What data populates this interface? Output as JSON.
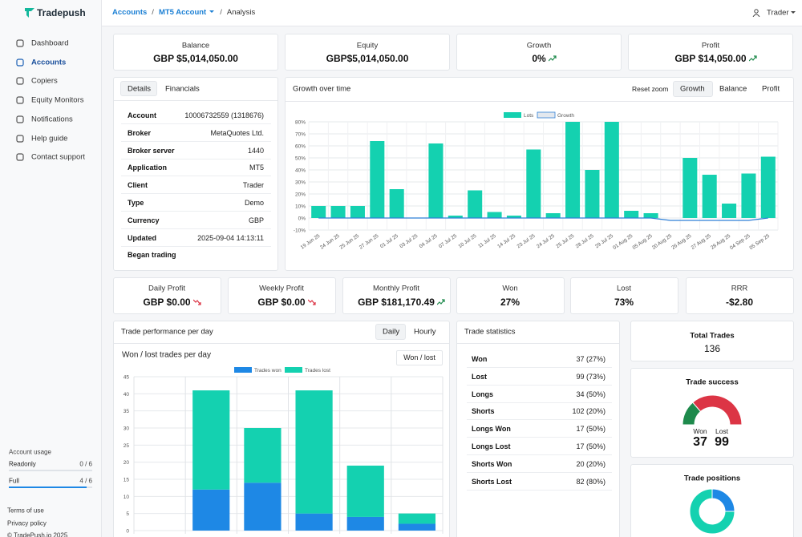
{
  "sidebar": {
    "brand": "Tradepush",
    "nav": [
      "Dashboard",
      "Accounts",
      "Copiers",
      "Equity Monitors",
      "Notifications",
      "Help guide",
      "Contact support"
    ],
    "usage_title": "Account usage",
    "usage": [
      {
        "label": "Readonly",
        "value": "0 / 6"
      },
      {
        "label": "Full",
        "value": "4 / 6"
      }
    ],
    "footer": [
      "Terms of use",
      "Privacy policy",
      "© TradePush.io 2025"
    ]
  },
  "breadcrumb": [
    "Accounts",
    "MT5 Account",
    "Analysis"
  ],
  "user": "Trader",
  "summary": [
    {
      "label": "Balance",
      "value": "GBP $5,014,050.00"
    },
    {
      "label": "Equity",
      "value": "GBP$5,014,050.00"
    },
    {
      "label": "Growth",
      "value": "0%"
    },
    {
      "label": "Profit",
      "value": "GBP $14,050.00"
    }
  ],
  "details": {
    "tabs": [
      "Details",
      "Financials"
    ],
    "rows": [
      {
        "label": "Account",
        "value": "10006732559 (1318676)"
      },
      {
        "label": "Broker",
        "value": "MetaQuotes Ltd."
      },
      {
        "label": "Broker server",
        "value": "1440"
      },
      {
        "label": "Application",
        "value": "MT5"
      },
      {
        "label": "Client",
        "value": "Trader"
      },
      {
        "label": "Type",
        "value": "Demo"
      },
      {
        "label": "Currency",
        "value": "GBP"
      },
      {
        "label": "Updated",
        "value": "2025-09-04 14:13:11"
      },
      {
        "label": "Began trading"
      }
    ]
  },
  "growth_panel": {
    "title": "Growth over time",
    "buttons": [
      "Reset zoom",
      "Growth",
      "Balance",
      "Profit"
    ]
  },
  "period_stats": [
    {
      "label": "Daily Profit",
      "value": "GBP $0.00"
    },
    {
      "label": "Weekly Profit",
      "value": "GBP $0.00"
    },
    {
      "label": "Monthly Profit",
      "value": "GBP $181,170.49"
    },
    {
      "label": "Won",
      "value": "27%"
    },
    {
      "label": "Lost",
      "value": "73%"
    },
    {
      "label": "RRR",
      "value": "-$2.80"
    }
  ],
  "performance_panel": {
    "title": "Trade performance per day",
    "tabs": [
      "Daily",
      "Hourly"
    ],
    "button": "Won / lost"
  },
  "trade_statistics": {
    "title": "Trade statistics",
    "rows": [
      {
        "label": "Won",
        "value": "37 (27%)"
      },
      {
        "label": "Lost",
        "value": "99 (73%)"
      },
      {
        "label": "Longs",
        "value": "34 (50%)"
      },
      {
        "label": "Shorts",
        "value": "102 (20%)"
      },
      {
        "label": "Longs Won",
        "value": "17 (50%)"
      },
      {
        "label": "Longs Lost",
        "value": "17 (50%)"
      },
      {
        "label": "Shorts Won",
        "value": "20 (20%)"
      },
      {
        "label": "Shorts Lost",
        "value": "82 (80%)"
      }
    ]
  },
  "total_trades": {
    "label": "Total Trades",
    "value": 136
  },
  "trade_success": {
    "title": "Trade success",
    "won_label": "Won",
    "lost_label": "Lost",
    "won": 37,
    "lost": 99,
    "won_color": "#1e8a4c",
    "lost_color": "#dc3545"
  },
  "trade_positions": {
    "title": "Trade positions",
    "values": [
      34,
      102
    ],
    "colors": [
      "#1e88e5",
      "#14d1b0"
    ]
  },
  "chart_data": [
    {
      "type": "bar",
      "categories": [
        "19 Jun 25",
        "24 Jun 25",
        "25 Jun 25",
        "27 Jun 25",
        "01 Jul 25",
        "03 Jul 25",
        "04 Jul 25",
        "07 Jul 25",
        "10 Jul 25",
        "11 Jul 25",
        "14 Jul 25",
        "23 Jul 25",
        "24 Jul 25",
        "25 Jul 25",
        "28 Jul 25",
        "29 Jul 25",
        "01 Aug 25",
        "05 Aug 25",
        "20 Aug 25",
        "26 Aug 25",
        "27 Aug 25",
        "28 Aug 25",
        "04 Sep 25",
        "05 Sep 25"
      ],
      "series": [
        {
          "name": "Lots",
          "color": "#14d1b0",
          "values": [
            10,
            10,
            10,
            64,
            24,
            0,
            62,
            2,
            23,
            5,
            2,
            57,
            4,
            80,
            40,
            80,
            6,
            4,
            0,
            50,
            36,
            12,
            37,
            51
          ]
        },
        {
          "name": "Growth",
          "type": "line",
          "color": "#2f7fd6",
          "values": [
            0,
            0,
            0,
            0,
            0,
            0,
            0,
            0,
            0,
            0,
            0,
            0,
            0,
            0,
            0,
            0,
            0,
            0,
            -2,
            -2,
            -2,
            -2,
            -2,
            0
          ]
        }
      ],
      "ylim": [
        -10,
        80
      ],
      "yticks": [
        {
          "value": -10,
          "label": "-10%"
        },
        {
          "value": 0,
          "label": "0%"
        },
        {
          "value": 10,
          "label": "10%"
        },
        {
          "value": 20,
          "label": "20%"
        },
        {
          "value": 30,
          "label": "30%"
        },
        {
          "value": 40,
          "label": "40%"
        },
        {
          "value": 50,
          "label": "50%"
        },
        {
          "value": 60,
          "label": "60%"
        },
        {
          "value": 70,
          "label": "70%"
        },
        {
          "value": 80,
          "label": "80%"
        }
      ],
      "grid": true
    },
    {
      "type": "bar",
      "stacked": true,
      "title": "Won / lost trades per day",
      "categories": [
        null,
        null,
        null,
        null,
        null,
        null
      ],
      "series": [
        {
          "name": "Trades won",
          "color": "#1e88e5",
          "values": [
            0,
            12,
            14,
            5,
            4,
            2
          ]
        },
        {
          "name": "Trades lost",
          "color": "#14d1b0",
          "values": [
            0,
            29,
            16,
            36,
            15,
            3
          ]
        }
      ],
      "ylim": [
        0,
        45
      ],
      "yticks": [
        0,
        5,
        10,
        15,
        20,
        25,
        30,
        35,
        40,
        45
      ],
      "grid": true
    }
  ]
}
